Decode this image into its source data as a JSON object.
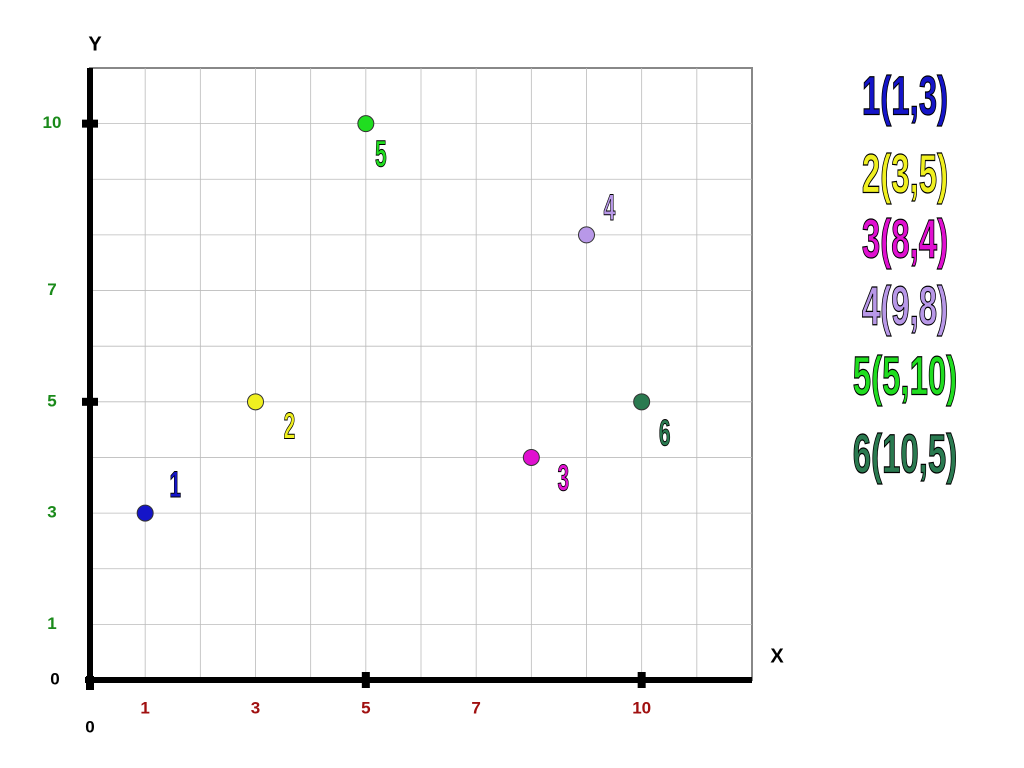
{
  "chart_data": {
    "type": "scatter",
    "xlabel": "X",
    "ylabel": "Y",
    "xlim": [
      0,
      12
    ],
    "ylim": [
      0,
      11
    ],
    "xticks": [
      0,
      1,
      3,
      5,
      7,
      10
    ],
    "yticks": [
      0,
      1,
      3,
      5,
      7,
      10
    ],
    "xgrid": [
      1,
      2,
      3,
      4,
      5,
      6,
      7,
      8,
      9,
      10,
      11
    ],
    "ygrid": [
      1,
      2,
      3,
      4,
      5,
      6,
      7,
      8,
      9,
      10
    ],
    "xmajor": [
      5,
      10
    ],
    "ymajor": [
      5,
      10
    ],
    "grid": true,
    "xtick_color": "#a01010",
    "ytick_color": "#1a8a1a",
    "series": [
      {
        "name": "1",
        "legend": "1(1,3)",
        "color": "#1515c8",
        "x": [
          1
        ],
        "y": [
          3
        ]
      },
      {
        "name": "2",
        "legend": "2(3,5)",
        "color": "#f0f020",
        "x": [
          3
        ],
        "y": [
          5
        ]
      },
      {
        "name": "3",
        "legend": "3(8,4)",
        "color": "#e010d0",
        "x": [
          8
        ],
        "y": [
          4
        ]
      },
      {
        "name": "4",
        "legend": "4(9,8)",
        "color": "#b898e8",
        "x": [
          9
        ],
        "y": [
          8
        ]
      },
      {
        "name": "5",
        "legend": "5(5,10)",
        "color": "#20dd20",
        "x": [
          5
        ],
        "y": [
          10
        ]
      },
      {
        "name": "6",
        "legend": "6(10,5)",
        "color": "#2a7a50",
        "x": [
          10
        ],
        "y": [
          5
        ]
      }
    ]
  }
}
